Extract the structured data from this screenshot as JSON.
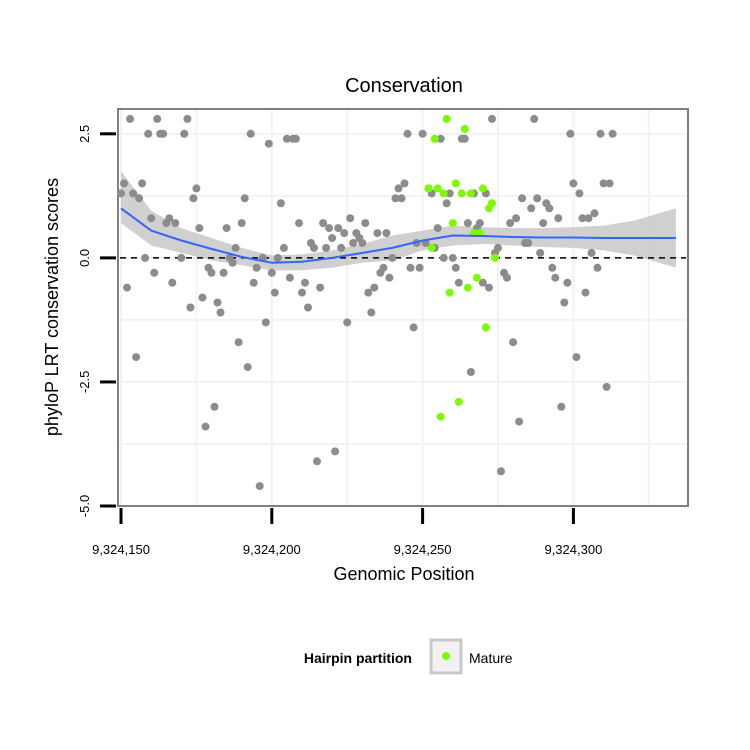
{
  "chart_data": {
    "type": "scatter",
    "title": "Conservation",
    "xlabel": "Genomic Position",
    "ylabel": "phyloP LRT conservation scores",
    "xlim": [
      9324149,
      9324338
    ],
    "ylim": [
      -5.0,
      3.0
    ],
    "x_ticks": [
      9324150,
      9324200,
      9324250,
      9324300
    ],
    "x_tick_labels": [
      "9,324,150",
      "9,324,200",
      "9,324,250",
      "9,324,300"
    ],
    "y_ticks": [
      -5.0,
      -2.5,
      0.0,
      2.5
    ],
    "y_tick_labels": [
      "-5.0",
      "-2.5",
      "0.0",
      "2.5"
    ],
    "reference_line": 0.0,
    "legend": {
      "title": "Hairpin partition",
      "placement": "bottom",
      "entries": [
        {
          "label": "Mature",
          "color": "#7cfc00"
        }
      ]
    },
    "colors": {
      "other": "#8c8c8c",
      "mature": "#7cfc00",
      "smooth": "#3366ff",
      "band": "#c8c8c8",
      "panel_border": "#808080",
      "grid": "#f2f2f2"
    },
    "series": [
      {
        "name": "Other",
        "color": "#8c8c8c",
        "points": [
          [
            9324150,
            1.3
          ],
          [
            9324151,
            1.5
          ],
          [
            9324152,
            -0.6
          ],
          [
            9324153,
            2.8
          ],
          [
            9324154,
            1.3
          ],
          [
            9324155,
            -2.0
          ],
          [
            9324156,
            1.2
          ],
          [
            9324157,
            1.5
          ],
          [
            9324158,
            0.0
          ],
          [
            9324159,
            2.5
          ],
          [
            9324160,
            0.8
          ],
          [
            9324161,
            -0.3
          ],
          [
            9324162,
            2.8
          ],
          [
            9324163,
            2.5
          ],
          [
            9324164,
            2.5
          ],
          [
            9324165,
            0.7
          ],
          [
            9324166,
            0.8
          ],
          [
            9324167,
            -0.5
          ],
          [
            9324168,
            0.7
          ],
          [
            9324170,
            0.0
          ],
          [
            9324171,
            2.5
          ],
          [
            9324172,
            2.8
          ],
          [
            9324173,
            -1.0
          ],
          [
            9324174,
            1.2
          ],
          [
            9324175,
            1.4
          ],
          [
            9324176,
            0.6
          ],
          [
            9324177,
            -0.8
          ],
          [
            9324178,
            -3.4
          ],
          [
            9324179,
            -0.2
          ],
          [
            9324180,
            -0.3
          ],
          [
            9324181,
            -3.0
          ],
          [
            9324182,
            -0.9
          ],
          [
            9324183,
            -1.1
          ],
          [
            9324184,
            -0.3
          ],
          [
            9324185,
            0.6
          ],
          [
            9324186,
            0.0
          ],
          [
            9324187,
            -0.1
          ],
          [
            9324188,
            0.2
          ],
          [
            9324189,
            -1.7
          ],
          [
            9324190,
            0.7
          ],
          [
            9324191,
            1.2
          ],
          [
            9324192,
            -2.2
          ],
          [
            9324193,
            2.5
          ],
          [
            9324194,
            -0.5
          ],
          [
            9324195,
            -0.2
          ],
          [
            9324196,
            -4.6
          ],
          [
            9324197,
            0.0
          ],
          [
            9324198,
            -1.3
          ],
          [
            9324199,
            2.3
          ],
          [
            9324200,
            -0.3
          ],
          [
            9324201,
            -0.7
          ],
          [
            9324202,
            0.0
          ],
          [
            9324203,
            1.1
          ],
          [
            9324204,
            0.2
          ],
          [
            9324205,
            2.4
          ],
          [
            9324206,
            -0.4
          ],
          [
            9324207,
            2.4
          ],
          [
            9324208,
            2.4
          ],
          [
            9324209,
            0.7
          ],
          [
            9324210,
            -0.7
          ],
          [
            9324211,
            -0.5
          ],
          [
            9324212,
            -1.0
          ],
          [
            9324213,
            0.3
          ],
          [
            9324214,
            0.2
          ],
          [
            9324215,
            -4.1
          ],
          [
            9324216,
            -0.6
          ],
          [
            9324217,
            0.7
          ],
          [
            9324218,
            0.2
          ],
          [
            9324219,
            0.6
          ],
          [
            9324220,
            0.4
          ],
          [
            9324221,
            -3.9
          ],
          [
            9324222,
            0.6
          ],
          [
            9324223,
            0.2
          ],
          [
            9324224,
            0.5
          ],
          [
            9324225,
            -1.3
          ],
          [
            9324226,
            0.8
          ],
          [
            9324227,
            0.3
          ],
          [
            9324228,
            0.5
          ],
          [
            9324229,
            0.4
          ],
          [
            9324230,
            0.3
          ],
          [
            9324231,
            0.7
          ],
          [
            9324232,
            -0.7
          ],
          [
            9324233,
            -1.1
          ],
          [
            9324234,
            -0.6
          ],
          [
            9324235,
            0.5
          ],
          [
            9324236,
            -0.3
          ],
          [
            9324237,
            -0.2
          ],
          [
            9324238,
            0.5
          ],
          [
            9324239,
            -0.4
          ],
          [
            9324240,
            0.0
          ],
          [
            9324241,
            1.2
          ],
          [
            9324242,
            1.4
          ],
          [
            9324243,
            1.2
          ],
          [
            9324244,
            1.5
          ],
          [
            9324245,
            2.5
          ],
          [
            9324246,
            -0.2
          ],
          [
            9324247,
            -1.4
          ],
          [
            9324248,
            0.3
          ],
          [
            9324249,
            -0.2
          ],
          [
            9324250,
            2.5
          ],
          [
            9324251,
            0.3
          ],
          [
            9324252,
            1.4
          ],
          [
            9324253,
            1.3
          ],
          [
            9324254,
            0.2
          ],
          [
            9324255,
            0.6
          ],
          [
            9324256,
            2.4
          ],
          [
            9324257,
            0.0
          ],
          [
            9324258,
            1.1
          ],
          [
            9324259,
            1.3
          ],
          [
            9324260,
            0.0
          ],
          [
            9324261,
            -0.2
          ],
          [
            9324262,
            -0.5
          ],
          [
            9324263,
            2.4
          ],
          [
            9324264,
            2.4
          ],
          [
            9324265,
            0.7
          ],
          [
            9324266,
            -2.3
          ],
          [
            9324267,
            1.3
          ],
          [
            9324268,
            0.6
          ],
          [
            9324269,
            0.7
          ],
          [
            9324270,
            -0.5
          ],
          [
            9324271,
            1.3
          ],
          [
            9324272,
            -0.6
          ],
          [
            9324273,
            2.8
          ],
          [
            9324274,
            0.1
          ],
          [
            9324275,
            0.2
          ],
          [
            9324276,
            -4.3
          ],
          [
            9324277,
            -0.3
          ],
          [
            9324278,
            -0.4
          ],
          [
            9324279,
            0.7
          ],
          [
            9324280,
            -1.7
          ],
          [
            9324281,
            0.8
          ],
          [
            9324282,
            -3.3
          ],
          [
            9324283,
            1.2
          ],
          [
            9324284,
            0.3
          ],
          [
            9324285,
            0.3
          ],
          [
            9324286,
            1.0
          ],
          [
            9324287,
            2.8
          ],
          [
            9324288,
            1.2
          ],
          [
            9324289,
            0.1
          ],
          [
            9324290,
            0.7
          ],
          [
            9324291,
            1.1
          ],
          [
            9324292,
            1.0
          ],
          [
            9324293,
            -0.2
          ],
          [
            9324294,
            -0.4
          ],
          [
            9324295,
            0.8
          ],
          [
            9324296,
            -3.0
          ],
          [
            9324297,
            -0.9
          ],
          [
            9324298,
            -0.5
          ],
          [
            9324299,
            2.5
          ],
          [
            9324300,
            1.5
          ],
          [
            9324301,
            -2.0
          ],
          [
            9324302,
            1.3
          ],
          [
            9324303,
            0.8
          ],
          [
            9324304,
            -0.7
          ],
          [
            9324305,
            0.8
          ],
          [
            9324306,
            0.1
          ],
          [
            9324307,
            0.9
          ],
          [
            9324308,
            -0.2
          ],
          [
            9324309,
            2.5
          ],
          [
            9324310,
            1.5
          ],
          [
            9324311,
            -2.6
          ],
          [
            9324312,
            1.5
          ],
          [
            9324313,
            2.5
          ]
        ]
      },
      {
        "name": "Mature",
        "color": "#7cfc00",
        "points": [
          [
            9324252,
            1.4
          ],
          [
            9324253,
            0.2
          ],
          [
            9324254,
            2.4
          ],
          [
            9324255,
            1.4
          ],
          [
            9324256,
            -3.2
          ],
          [
            9324257,
            1.3
          ],
          [
            9324258,
            2.8
          ],
          [
            9324259,
            -0.7
          ],
          [
            9324260,
            0.7
          ],
          [
            9324261,
            1.5
          ],
          [
            9324262,
            -2.9
          ],
          [
            9324263,
            1.3
          ],
          [
            9324264,
            2.6
          ],
          [
            9324265,
            -0.6
          ],
          [
            9324266,
            1.3
          ],
          [
            9324267,
            0.5
          ],
          [
            9324268,
            -0.4
          ],
          [
            9324269,
            0.5
          ],
          [
            9324270,
            1.4
          ],
          [
            9324271,
            -1.4
          ],
          [
            9324272,
            1.0
          ],
          [
            9324273,
            1.1
          ],
          [
            9324274,
            0.0
          ]
        ]
      }
    ],
    "smooth": {
      "x": [
        9324150,
        9324160,
        9324170,
        9324180,
        9324190,
        9324200,
        9324210,
        9324220,
        9324230,
        9324240,
        9324250,
        9324260,
        9324270,
        9324280,
        9324290,
        9324300,
        9324310,
        9324320,
        9324334
      ],
      "y": [
        1.0,
        0.55,
        0.35,
        0.18,
        0.02,
        -0.1,
        -0.08,
        0.0,
        0.1,
        0.2,
        0.35,
        0.45,
        0.44,
        0.42,
        0.41,
        0.41,
        0.4,
        0.4,
        0.4
      ],
      "lower": [
        0.7,
        0.25,
        0.1,
        -0.05,
        -0.15,
        -0.25,
        -0.25,
        -0.2,
        -0.1,
        -0.05,
        0.15,
        0.25,
        0.28,
        0.25,
        0.22,
        0.2,
        0.15,
        0.05,
        -0.2
      ],
      "upper": [
        1.75,
        0.95,
        0.6,
        0.4,
        0.2,
        0.05,
        0.07,
        0.15,
        0.28,
        0.45,
        0.55,
        0.65,
        0.62,
        0.6,
        0.6,
        0.62,
        0.65,
        0.75,
        1.0
      ]
    }
  }
}
